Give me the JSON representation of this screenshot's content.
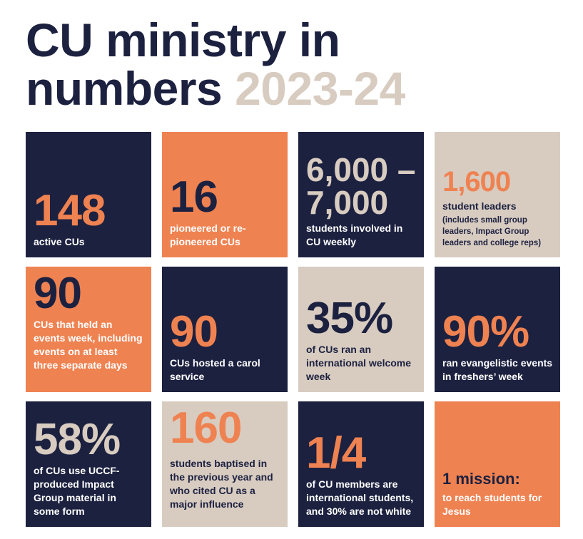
{
  "title": {
    "line1": "CU ministry in",
    "line2_main": "numbers",
    "line2_year": "2023-24"
  },
  "colors": {
    "navy": "#1c2140",
    "orange": "#ef8251",
    "beige": "#d8ccc1",
    "white": "#ffffff"
  },
  "tiles": [
    {
      "number": "148",
      "text": "active CUs"
    },
    {
      "number": "16",
      "text": "pioneered or re-pioneered CUs"
    },
    {
      "number": "6,000 – 7,000",
      "number_line1": "6,000 –",
      "number_line2": "7,000",
      "text": "students involved in CU weekly"
    },
    {
      "number": "1,600",
      "text": "student leaders",
      "note": "(includes small group leaders, Impact Group leaders and college reps)"
    },
    {
      "number": "90",
      "text": "CUs that held an events week, including events on at least three separate days"
    },
    {
      "number": "90",
      "text": "CUs hosted a carol service"
    },
    {
      "number": "35%",
      "text": "of CUs ran an international welcome week"
    },
    {
      "number": "90%",
      "text": "ran evangelistic events in freshers’ week"
    },
    {
      "number": "58%",
      "text": "of CUs use UCCF-produced Impact Group material in some form"
    },
    {
      "number": "160",
      "text": "students baptised in the previous year and who cited CU as a major influence"
    },
    {
      "number": "1/4",
      "text": "of CU members are international students, and 30% are not white"
    },
    {
      "number": "1 mission:",
      "text": "to reach students for Jesus"
    }
  ]
}
